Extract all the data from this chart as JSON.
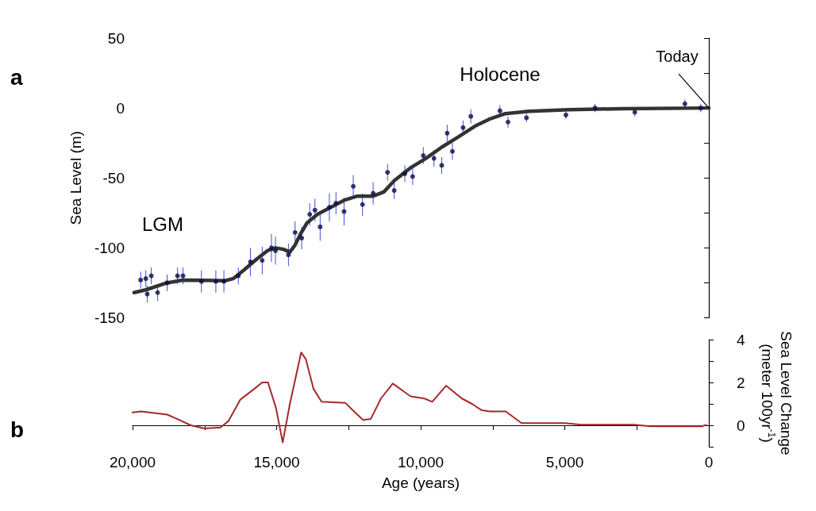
{
  "chart_data": [
    {
      "type": "scatter",
      "title": "a",
      "ylabel": "Sea Level (m)",
      "xlim": [
        20000,
        0
      ],
      "ylim": [
        -150,
        50
      ],
      "yticks": [
        50,
        {
          "value": 25,
          "label": null
        },
        0,
        {
          "value": -25,
          "label": null
        },
        -50,
        {
          "value": -75,
          "label": null
        },
        -100,
        {
          "value": -125,
          "label": null
        },
        -150
      ],
      "tick_labels": "y",
      "annotations": [
        "LGM",
        "Holocene",
        {
          "text": "Today",
          "x": 0,
          "y": 0
        }
      ],
      "series": [
        {
          "marker": "circle",
          "color": "#0a0a4a",
          "x": [
            19720,
            19540,
            19490,
            19350,
            19130,
            18800,
            18440,
            18250,
            17610,
            17110,
            16830,
            16330,
            15910,
            15500,
            15180,
            15040,
            14590,
            14360,
            14130,
            13850,
            13670,
            13490,
            13170,
            12940,
            12660,
            12340,
            12020,
            11650,
            11150,
            10920,
            10550,
            10280,
            9910,
            9540,
            9270,
            9080,
            8900,
            8530,
            8260,
            7250,
            6970,
            6330,
            4960,
            3950,
            2570,
            830,
            280
          ],
          "values": [
            -123,
            -122,
            -133,
            -120,
            -132,
            -125,
            -120,
            -120,
            -124,
            -124,
            -124,
            -120,
            -110,
            -109,
            -100,
            -102,
            -105,
            -89,
            -93,
            -76,
            -73,
            -85,
            -71,
            -68,
            -74,
            -56,
            -69,
            -61,
            -46,
            -59,
            -47,
            -49,
            -34,
            -36,
            -41,
            -18,
            -31,
            -14,
            -6,
            -2,
            -10,
            -7,
            -5,
            0,
            -3,
            3,
            0
          ],
          "errors": [
            6,
            6,
            6,
            6,
            6,
            6,
            6,
            6,
            8,
            8,
            8,
            6,
            10,
            10,
            10,
            10,
            8,
            8,
            8,
            8,
            8,
            10,
            10,
            8,
            10,
            8,
            8,
            8,
            6,
            6,
            6,
            6,
            6,
            6,
            6,
            6,
            6,
            5,
            5,
            4,
            4,
            3,
            3,
            3,
            3,
            3,
            3
          ]
        },
        {
          "type": "line",
          "marker": "none",
          "color": "#333333",
          "x": [
            19950,
            19540,
            18800,
            18250,
            16790,
            16510,
            16140,
            15690,
            15320,
            15040,
            14770,
            14540,
            14360,
            14170,
            13940,
            13580,
            13120,
            12660,
            12200,
            11650,
            11280,
            10920,
            10370,
            9820,
            9270,
            8720,
            8120,
            7620,
            7060,
            6240,
            4860,
            3040,
            0
          ],
          "values": [
            -132,
            -130,
            -125,
            -123,
            -123.5,
            -122,
            -116,
            -108,
            -102,
            -100,
            -101,
            -103,
            -98,
            -90,
            -82,
            -76,
            -71,
            -66,
            -63,
            -63,
            -60,
            -52,
            -43,
            -36,
            -28,
            -21,
            -13,
            -8,
            -4,
            -2.3,
            -1.2,
            -0.5,
            0
          ]
        }
      ]
    },
    {
      "type": "line",
      "title": "b",
      "xlabel": "Age (years)",
      "y2label": "Sea Level Change (meter 100yr$^{-1}$)",
      "xlim": [
        20000,
        0
      ],
      "xticks": [
        {
          "value": 20000,
          "label": "20,000"
        },
        {
          "value": 17500,
          "label": null
        },
        {
          "value": 15000,
          "label": "15,000"
        },
        {
          "value": 12500,
          "label": null
        },
        {
          "value": 10000,
          "label": "10,000"
        },
        {
          "value": 7500,
          "label": null
        },
        {
          "value": 5000,
          "label": "5,000"
        },
        {
          "value": 2500,
          "label": null
        },
        0
      ],
      "y2lim": [
        -1,
        4
      ],
      "y2ticks": [
        4,
        {
          "value": 3,
          "label": null
        },
        2,
        {
          "value": 1,
          "label": null
        },
        0,
        {
          "value": -1,
          "label": null
        }
      ],
      "series": [
        {
          "axis": "y2",
          "marker": "none",
          "color": "#a52a2a",
          "x": [
            20000,
            19700,
            18800,
            18460,
            17980,
            17500,
            16950,
            16670,
            16260,
            15780,
            15500,
            15300,
            15020,
            14790,
            14540,
            14150,
            13990,
            13720,
            13440,
            12620,
            12280,
            12000,
            11730,
            11380,
            10970,
            10350,
            9870,
            9600,
            9120,
            8570,
            8220,
            7880,
            7600,
            7050,
            6500,
            4990,
            4440,
            2590,
            2040,
            250,
            100
          ],
          "values": [
            0.6,
            0.65,
            0.5,
            0.3,
            0,
            -0.15,
            -0.1,
            0.2,
            1.2,
            1.7,
            2,
            2,
            0.8,
            -0.8,
            1,
            3.4,
            3.1,
            1.7,
            1.1,
            1.05,
            0.6,
            0.25,
            0.3,
            1.25,
            1.95,
            1.35,
            1.25,
            1.1,
            1.85,
            1.25,
            1,
            0.7,
            0.65,
            0.65,
            0.1,
            0.1,
            0.03,
            0.03,
            -0.05,
            -0.05,
            0.02
          ]
        }
      ]
    }
  ]
}
